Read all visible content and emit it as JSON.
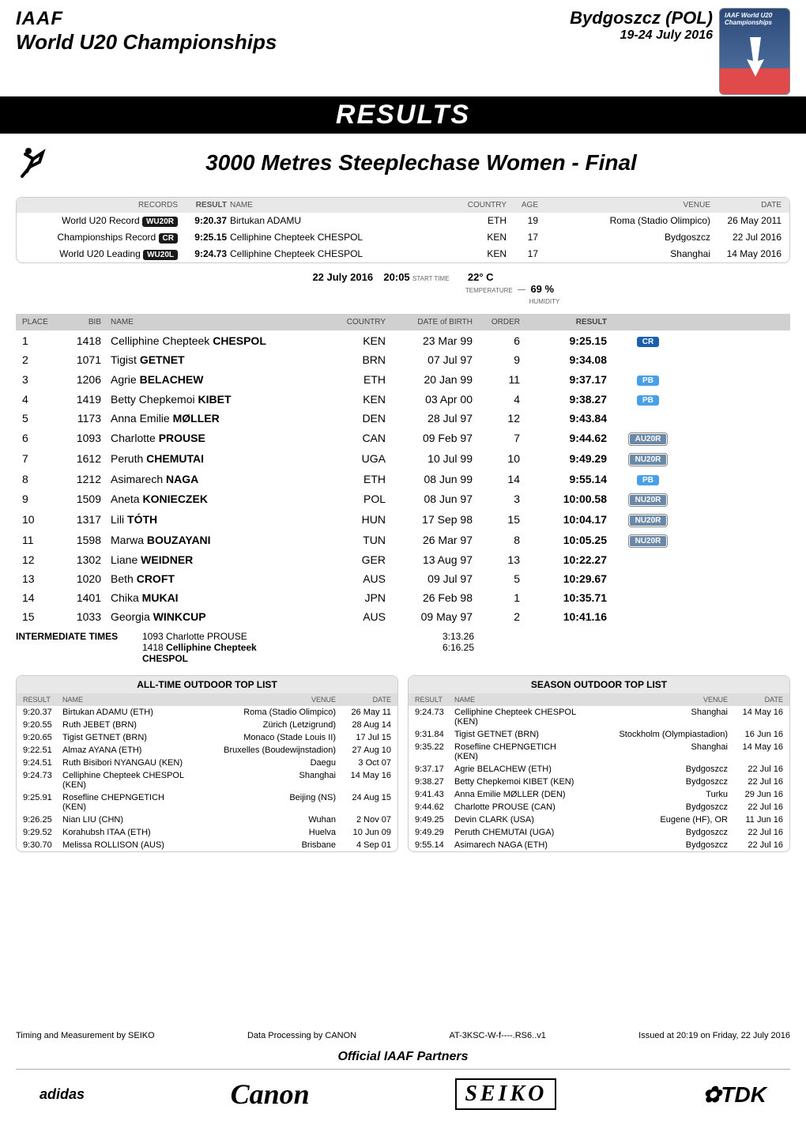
{
  "header": {
    "org": "IAAF",
    "event": "World U20 Championships",
    "city": "Bydgoszcz (POL)",
    "dates": "19-24 July 2016",
    "logo_top": "IAAF World U20 Championships"
  },
  "titles": {
    "results": "RESULTS",
    "event": "3000 Metres Steeplechase Women - Final"
  },
  "records": {
    "head": {
      "records": "RECORDS",
      "result": "RESULT",
      "name": "NAME",
      "country": "COUNTRY",
      "age": "AGE",
      "venue": "VENUE",
      "date": "DATE"
    },
    "rows": [
      {
        "label": "World U20 Record",
        "pill": "WU20R",
        "result": "9:20.37",
        "name": "Birtukan ADAMU",
        "country": "ETH",
        "age": "19",
        "venue": "Roma (Stadio Olimpico)",
        "date": "26 May 2011"
      },
      {
        "label": "Championships Record",
        "pill": "CR",
        "result": "9:25.15",
        "name": "Celliphine Chepteek CHESPOL",
        "country": "KEN",
        "age": "17",
        "venue": "Bydgoszcz",
        "date": "22 Jul 2016"
      },
      {
        "label": "World U20 Leading",
        "pill": "WU20L",
        "result": "9:24.73",
        "name": "Celliphine Chepteek CHESPOL",
        "country": "KEN",
        "age": "17",
        "venue": "Shanghai",
        "date": "14 May 2016"
      }
    ]
  },
  "meta": {
    "date": "22 July  2016",
    "time": "20:05",
    "time_lbl": "START TIME",
    "temp": "22° C",
    "temp_lbl": "TEMPERATURE",
    "hum": "69 %",
    "hum_lbl": "HUMIDITY"
  },
  "table": {
    "head": {
      "place": "PLACE",
      "bib": "BIB",
      "name": "NAME",
      "country": "COUNTRY",
      "dob": "DATE of BIRTH",
      "order": "ORDER",
      "result": "RESULT"
    },
    "rows": [
      {
        "pl": "1",
        "bib": "1418",
        "fn": "Celliphine Chepteek",
        "ln": "CHESPOL",
        "cty": "KEN",
        "dob": "23 Mar 99",
        "ord": "6",
        "res": "9:25.15",
        "bad": "CR",
        "bg": "#1b5fb0"
      },
      {
        "pl": "2",
        "bib": "1071",
        "fn": "Tigist",
        "ln": "GETNET",
        "cty": "BRN",
        "dob": "07 Jul 97",
        "ord": "9",
        "res": "9:34.08",
        "bad": "",
        "bg": ""
      },
      {
        "pl": "3",
        "bib": "1206",
        "fn": "Agrie",
        "ln": "BELACHEW",
        "cty": "ETH",
        "dob": "20 Jan 99",
        "ord": "11",
        "res": "9:37.17",
        "bad": "PB",
        "bg": "#4aa0e8"
      },
      {
        "pl": "4",
        "bib": "1419",
        "fn": "Betty Chepkemoi",
        "ln": "KIBET",
        "cty": "KEN",
        "dob": "03 Apr 00",
        "ord": "4",
        "res": "9:38.27",
        "bad": "PB",
        "bg": "#4aa0e8"
      },
      {
        "pl": "5",
        "bib": "1173",
        "fn": "Anna Emilie",
        "ln": "MØLLER",
        "cty": "DEN",
        "dob": "28 Jul 97",
        "ord": "12",
        "res": "9:43.84",
        "bad": "",
        "bg": ""
      },
      {
        "pl": "6",
        "bib": "1093",
        "fn": "Charlotte",
        "ln": "PROUSE",
        "cty": "CAN",
        "dob": "09 Feb 97",
        "ord": "7",
        "res": "9:44.62",
        "bad": "AU20R",
        "bg": "#6a88a8"
      },
      {
        "pl": "7",
        "bib": "1612",
        "fn": "Peruth",
        "ln": "CHEMUTAI",
        "cty": "UGA",
        "dob": "10 Jul 99",
        "ord": "10",
        "res": "9:49.29",
        "bad": "NU20R",
        "bg": "#6a88a8"
      },
      {
        "pl": "8",
        "bib": "1212",
        "fn": "Asimarech",
        "ln": "NAGA",
        "cty": "ETH",
        "dob": "08 Jun 99",
        "ord": "14",
        "res": "9:55.14",
        "bad": "PB",
        "bg": "#4aa0e8"
      },
      {
        "pl": "9",
        "bib": "1509",
        "fn": "Aneta",
        "ln": "KONIECZEK",
        "cty": "POL",
        "dob": "08 Jun 97",
        "ord": "3",
        "res": "10:00.58",
        "bad": "NU20R",
        "bg": "#6a88a8"
      },
      {
        "pl": "10",
        "bib": "1317",
        "fn": "Lili",
        "ln": "TÓTH",
        "cty": "HUN",
        "dob": "17 Sep 98",
        "ord": "15",
        "res": "10:04.17",
        "bad": "NU20R",
        "bg": "#6a88a8"
      },
      {
        "pl": "11",
        "bib": "1598",
        "fn": "Marwa",
        "ln": "BOUZAYANI",
        "cty": "TUN",
        "dob": "26 Mar 97",
        "ord": "8",
        "res": "10:05.25",
        "bad": "NU20R",
        "bg": "#6a88a8"
      },
      {
        "pl": "12",
        "bib": "1302",
        "fn": "Liane",
        "ln": "WEIDNER",
        "cty": "GER",
        "dob": "13 Aug 97",
        "ord": "13",
        "res": "10:22.27",
        "bad": "",
        "bg": ""
      },
      {
        "pl": "13",
        "bib": "1020",
        "fn": "Beth",
        "ln": "CROFT",
        "cty": "AUS",
        "dob": "09 Jul 97",
        "ord": "5",
        "res": "10:29.67",
        "bad": "",
        "bg": ""
      },
      {
        "pl": "14",
        "bib": "1401",
        "fn": "Chika",
        "ln": "MUKAI",
        "cty": "JPN",
        "dob": "26 Feb 98",
        "ord": "1",
        "res": "10:35.71",
        "bad": "",
        "bg": ""
      },
      {
        "pl": "15",
        "bib": "1033",
        "fn": "Georgia",
        "ln": "WINKCUP",
        "cty": "AUS",
        "dob": "09 May 97",
        "ord": "2",
        "res": "10:41.16",
        "bad": "",
        "bg": ""
      }
    ]
  },
  "inter": {
    "label": "INTERMEDIATE TIMES",
    "rows": [
      {
        "bib": "1093",
        "name": "Charlotte PROUSE",
        "time": "3:13.26"
      },
      {
        "bib": "1418",
        "name": "Celliphine Chepteek CHESPOL",
        "time": "6:16.25"
      }
    ]
  },
  "lists": {
    "left": {
      "title": "ALL-TIME OUTDOOR TOP LIST",
      "head": {
        "result": "RESULT",
        "name": "NAME",
        "venue": "VENUE",
        "date": "DATE"
      },
      "rows": [
        {
          "r": "9:20.37",
          "n": "Birtukan ADAMU (ETH)",
          "v": "Roma (Stadio Olimpico)",
          "d": "26 May 11"
        },
        {
          "r": "9:20.55",
          "n": "Ruth JEBET (BRN)",
          "v": "Zürich (Letzigrund)",
          "d": "28 Aug 14"
        },
        {
          "r": "9:20.65",
          "n": "Tigist GETNET (BRN)",
          "v": "Monaco (Stade Louis II)",
          "d": "17 Jul 15"
        },
        {
          "r": "9:22.51",
          "n": "Almaz AYANA (ETH)",
          "v": "Bruxelles (Boudewijnstadion)",
          "d": "27 Aug 10"
        },
        {
          "r": "9:24.51",
          "n": "Ruth Bisibori NYANGAU (KEN)",
          "v": "Daegu",
          "d": "3 Oct 07"
        },
        {
          "r": "9:24.73",
          "n": "Celliphine Chepteek CHESPOL (KEN)",
          "v": "Shanghai",
          "d": "14 May 16"
        },
        {
          "r": "9:25.91",
          "n": "Rosefline CHEPNGETICH (KEN)",
          "v": "Beijing (NS)",
          "d": "24 Aug 15"
        },
        {
          "r": "9:26.25",
          "n": "Nian LIU (CHN)",
          "v": "Wuhan",
          "d": "2 Nov 07"
        },
        {
          "r": "9:29.52",
          "n": "Korahubsh ITAA (ETH)",
          "v": "Huelva",
          "d": "10 Jun 09"
        },
        {
          "r": "9:30.70",
          "n": "Melissa ROLLISON (AUS)",
          "v": "Brisbane",
          "d": "4 Sep 01"
        }
      ]
    },
    "right": {
      "title": "SEASON OUTDOOR TOP LIST",
      "head": {
        "result": "RESULT",
        "name": "NAME",
        "venue": "VENUE",
        "date": "DATE"
      },
      "rows": [
        {
          "r": "9:24.73",
          "n": "Celliphine Chepteek CHESPOL (KEN)",
          "v": "Shanghai",
          "d": "14 May 16"
        },
        {
          "r": "9:31.84",
          "n": "Tigist GETNET (BRN)",
          "v": "Stockholm (Olympiastadion)",
          "d": "16 Jun 16"
        },
        {
          "r": "9:35.22",
          "n": "Rosefline CHEPNGETICH (KEN)",
          "v": "Shanghai",
          "d": "14 May 16"
        },
        {
          "r": "9:37.17",
          "n": "Agrie BELACHEW (ETH)",
          "v": "Bydgoszcz",
          "d": "22 Jul 16"
        },
        {
          "r": "9:38.27",
          "n": "Betty Chepkemoi KIBET (KEN)",
          "v": "Bydgoszcz",
          "d": "22 Jul 16"
        },
        {
          "r": "9:41.43",
          "n": "Anna Emilie MØLLER (DEN)",
          "v": "Turku",
          "d": "29 Jun 16"
        },
        {
          "r": "9:44.62",
          "n": "Charlotte PROUSE (CAN)",
          "v": "Bydgoszcz",
          "d": "22 Jul 16"
        },
        {
          "r": "9:49.25",
          "n": "Devin CLARK (USA)",
          "v": "Eugene (HF), OR",
          "d": "11 Jun 16"
        },
        {
          "r": "9:49.29",
          "n": "Peruth CHEMUTAI (UGA)",
          "v": "Bydgoszcz",
          "d": "22 Jul 16"
        },
        {
          "r": "9:55.14",
          "n": "Asimarech NAGA (ETH)",
          "v": "Bydgoszcz",
          "d": "22 Jul 16"
        }
      ]
    }
  },
  "footer": {
    "l1a": "Timing and Measurement by SEIKO",
    "l1b": "Data Processing by CANON",
    "l1c": "AT-3KSC-W-f----.RS6..v1",
    "l1d": "Issued at 20:19 on Friday, 22 July 2016",
    "partners": "Official IAAF Partners",
    "logos": [
      "adidas",
      "Canon",
      "SEIKO",
      "✿TDK"
    ]
  }
}
